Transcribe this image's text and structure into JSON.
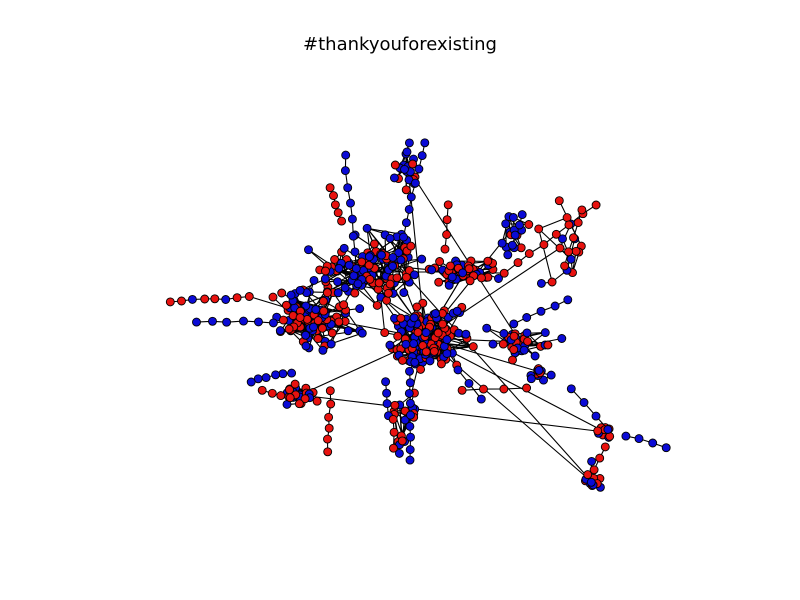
{
  "figure": {
    "title": "#thankyouforexisting"
  },
  "colors": {
    "node_red": "#e8120f",
    "node_blue": "#0b0bd6",
    "edge": "#000000",
    "background": "#ffffff"
  },
  "legend": "none",
  "axes_visible": false
}
